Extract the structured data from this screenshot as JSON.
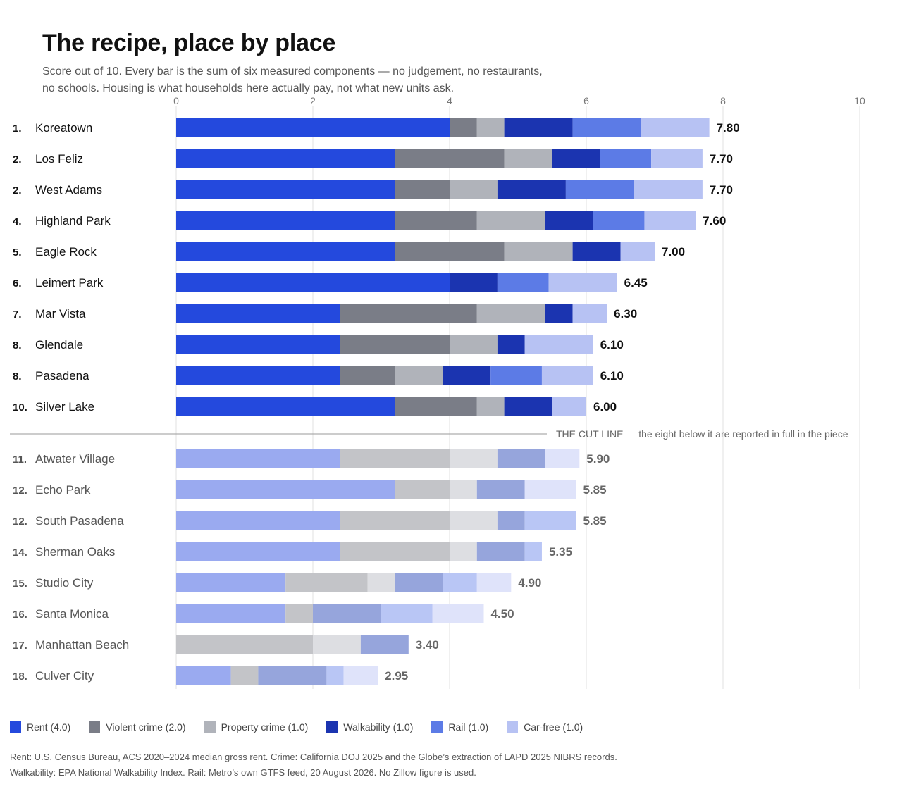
{
  "header": {
    "title": "The recipe, place by place",
    "subtitle": "Score out of 10. Every bar is the sum of six measured components — no judgement, no restaurants, no schools. Housing is what households here actually pay, not what new units ask."
  },
  "colors": {
    "top": [
      "#2449dd",
      "#7a7d87",
      "#b0b3ba",
      "#1b34b0",
      "#5c7be6",
      "#b7c2f3"
    ],
    "bottom": [
      "#9aaaf0",
      "#c3c4c8",
      "#dddee2",
      "#96a5dc",
      "#b9c6f5",
      "#dfe3fa"
    ]
  },
  "cut_line_label": "THE CUT LINE — the eight below it are reported in full in the piece",
  "legend": [
    {
      "label": "Rent (4.0)",
      "color": "#2449dd"
    },
    {
      "label": "Violent crime (2.0)",
      "color": "#7a7d87"
    },
    {
      "label": "Property crime (1.0)",
      "color": "#b0b3ba"
    },
    {
      "label": "Walkability (1.0)",
      "color": "#1b34b0"
    },
    {
      "label": "Rail (1.0)",
      "color": "#5c7be6"
    },
    {
      "label": "Car-free (1.0)",
      "color": "#b7c2f3"
    }
  ],
  "source": {
    "line1": "Rent: U.S. Census Bureau, ACS 2020–2024 median gross rent. Crime: California DOJ 2025 and the Globe’s extraction of LAPD 2025 NIBRS records.",
    "line2": "Walkability: EPA National Walkability Index. Rail: Metro’s own GTFS feed, 20 August 2026. No Zillow figure is used."
  },
  "chart_data": {
    "type": "bar",
    "orientation": "horizontal",
    "stacked": true,
    "xlim": [
      0,
      10
    ],
    "xticks": [
      "0",
      "2",
      "4",
      "6",
      "8",
      "10"
    ],
    "grid": true,
    "components": [
      "Rent",
      "Violent crime",
      "Property crime",
      "Walkability",
      "Rail",
      "Car-free"
    ],
    "cut_after": 10,
    "rows": [
      {
        "rank": "1.",
        "name": "Koreatown",
        "total": "7.80",
        "values": [
          4.0,
          0.4,
          0.4,
          1.0,
          1.0,
          1.0
        ]
      },
      {
        "rank": "2.",
        "name": "Los Feliz",
        "total": "7.70",
        "values": [
          3.2,
          1.6,
          0.7,
          0.7,
          0.75,
          0.75
        ]
      },
      {
        "rank": "2.",
        "name": "West Adams",
        "total": "7.70",
        "values": [
          3.2,
          0.8,
          0.7,
          1.0,
          1.0,
          1.0
        ]
      },
      {
        "rank": "4.",
        "name": "Highland Park",
        "total": "7.60",
        "values": [
          3.2,
          1.2,
          1.0,
          0.7,
          0.75,
          0.75
        ]
      },
      {
        "rank": "5.",
        "name": "Eagle Rock",
        "total": "7.00",
        "values": [
          3.2,
          1.6,
          1.0,
          0.7,
          0.0,
          0.5
        ]
      },
      {
        "rank": "6.",
        "name": "Leimert Park",
        "total": "6.45",
        "values": [
          4.0,
          0.0,
          0.0,
          0.7,
          0.75,
          1.0
        ]
      },
      {
        "rank": "7.",
        "name": "Mar Vista",
        "total": "6.30",
        "values": [
          2.4,
          2.0,
          1.0,
          0.4,
          0.0,
          0.5
        ]
      },
      {
        "rank": "8.",
        "name": "Glendale",
        "total": "6.10",
        "values": [
          2.4,
          1.6,
          0.7,
          0.4,
          0.0,
          1.0
        ]
      },
      {
        "rank": "8.",
        "name": "Pasadena",
        "total": "6.10",
        "values": [
          2.4,
          0.8,
          0.7,
          0.7,
          0.75,
          0.75
        ]
      },
      {
        "rank": "10.",
        "name": "Silver Lake",
        "total": "6.00",
        "values": [
          3.2,
          1.2,
          0.4,
          0.7,
          0.0,
          0.5
        ]
      },
      {
        "rank": "11.",
        "name": "Atwater Village",
        "total": "5.90",
        "values": [
          2.4,
          1.6,
          0.7,
          0.7,
          0.0,
          0.5
        ]
      },
      {
        "rank": "12.",
        "name": "Echo Park",
        "total": "5.85",
        "values": [
          3.2,
          0.8,
          0.4,
          0.7,
          0.0,
          0.75
        ]
      },
      {
        "rank": "12.",
        "name": "South Pasadena",
        "total": "5.85",
        "values": [
          2.4,
          1.6,
          0.7,
          0.4,
          0.75,
          0.0
        ]
      },
      {
        "rank": "14.",
        "name": "Sherman Oaks",
        "total": "5.35",
        "values": [
          2.4,
          1.6,
          0.4,
          0.7,
          0.25,
          0.0
        ]
      },
      {
        "rank": "15.",
        "name": "Studio City",
        "total": "4.90",
        "values": [
          1.6,
          1.2,
          0.4,
          0.7,
          0.5,
          0.5
        ]
      },
      {
        "rank": "16.",
        "name": "Santa Monica",
        "total": "4.50",
        "values": [
          1.6,
          0.4,
          0.0,
          1.0,
          0.75,
          0.75
        ]
      },
      {
        "rank": "17.",
        "name": "Manhattan Beach",
        "total": "3.40",
        "values": [
          0.0,
          2.0,
          0.7,
          0.7,
          0.0,
          0.0
        ]
      },
      {
        "rank": "18.",
        "name": "Culver City",
        "total": "2.95",
        "values": [
          0.8,
          0.4,
          0.0,
          1.0,
          0.25,
          0.5
        ]
      }
    ]
  }
}
